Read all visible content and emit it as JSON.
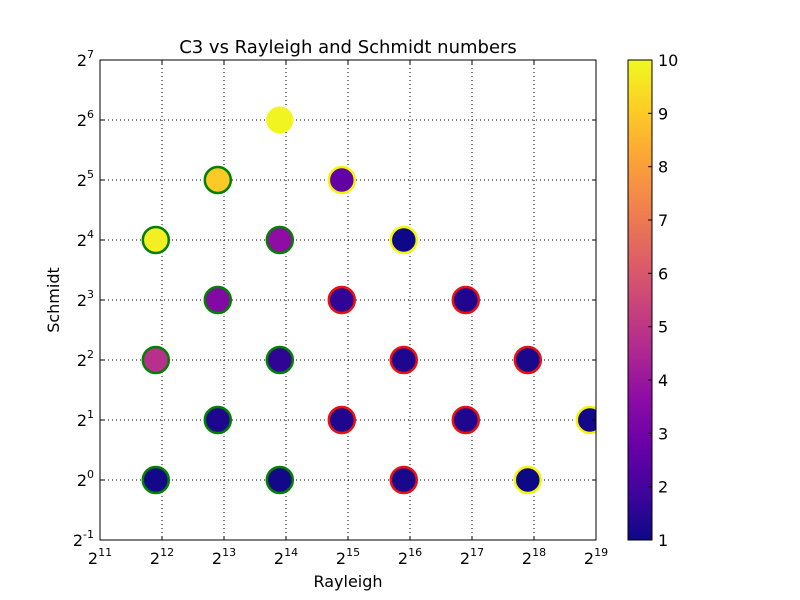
{
  "chart_data": {
    "type": "scatter",
    "title": "C3 vs Rayleigh and Schmidt numbers",
    "xlabel": "Rayleigh",
    "ylabel": "Schmidt",
    "x_scale": "log2",
    "y_scale": "log2",
    "xlim_exponent": [
      11,
      19
    ],
    "ylim_exponent": [
      -1,
      7
    ],
    "x_ticks": [
      "11",
      "12",
      "13",
      "14",
      "15",
      "16",
      "17",
      "18",
      "19"
    ],
    "y_ticks": [
      "-1",
      "0",
      "1",
      "2",
      "3",
      "4",
      "5",
      "6",
      "7"
    ],
    "tick_base": "2",
    "grid": true,
    "colorbar": {
      "colormap": "plasma",
      "min": 1,
      "max": 10,
      "ticks": [
        "1",
        "2",
        "3",
        "4",
        "5",
        "6",
        "7",
        "8",
        "9",
        "10"
      ]
    },
    "edge_colors": {
      "green": "#008000",
      "red": "#e81010",
      "yellow": "#f5f50a",
      "none": "#f5f50a"
    },
    "points": [
      {
        "x_exp": 11.9,
        "y_exp": 0,
        "c3": 1.1,
        "edge": "green"
      },
      {
        "x_exp": 11.9,
        "y_exp": 2,
        "c3": 4.8,
        "edge": "green"
      },
      {
        "x_exp": 11.9,
        "y_exp": 4,
        "c3": 9.8,
        "edge": "green"
      },
      {
        "x_exp": 12.9,
        "y_exp": 1,
        "c3": 1.3,
        "edge": "green"
      },
      {
        "x_exp": 12.9,
        "y_exp": 3,
        "c3": 3.4,
        "edge": "green"
      },
      {
        "x_exp": 12.9,
        "y_exp": 5,
        "c3": 9.0,
        "edge": "green"
      },
      {
        "x_exp": 13.9,
        "y_exp": 0,
        "c3": 1.1,
        "edge": "green"
      },
      {
        "x_exp": 13.9,
        "y_exp": 2,
        "c3": 1.6,
        "edge": "green"
      },
      {
        "x_exp": 13.9,
        "y_exp": 4,
        "c3": 3.7,
        "edge": "green"
      },
      {
        "x_exp": 13.9,
        "y_exp": 6,
        "c3": 9.9,
        "edge": "none"
      },
      {
        "x_exp": 14.9,
        "y_exp": 1,
        "c3": 1.3,
        "edge": "red"
      },
      {
        "x_exp": 14.9,
        "y_exp": 3,
        "c3": 1.6,
        "edge": "red"
      },
      {
        "x_exp": 14.9,
        "y_exp": 5,
        "c3": 2.6,
        "edge": "yellow"
      },
      {
        "x_exp": 15.9,
        "y_exp": 0,
        "c3": 1.2,
        "edge": "red"
      },
      {
        "x_exp": 15.9,
        "y_exp": 2,
        "c3": 1.3,
        "edge": "red"
      },
      {
        "x_exp": 15.9,
        "y_exp": 4,
        "c3": 1.0,
        "edge": "yellow"
      },
      {
        "x_exp": 16.9,
        "y_exp": 1,
        "c3": 1.3,
        "edge": "red"
      },
      {
        "x_exp": 16.9,
        "y_exp": 3,
        "c3": 1.3,
        "edge": "red"
      },
      {
        "x_exp": 17.9,
        "y_exp": 0,
        "c3": 1.0,
        "edge": "yellow"
      },
      {
        "x_exp": 17.9,
        "y_exp": 2,
        "c3": 1.2,
        "edge": "red"
      },
      {
        "x_exp": 18.9,
        "y_exp": 1,
        "c3": 1.1,
        "edge": "yellow"
      }
    ]
  }
}
